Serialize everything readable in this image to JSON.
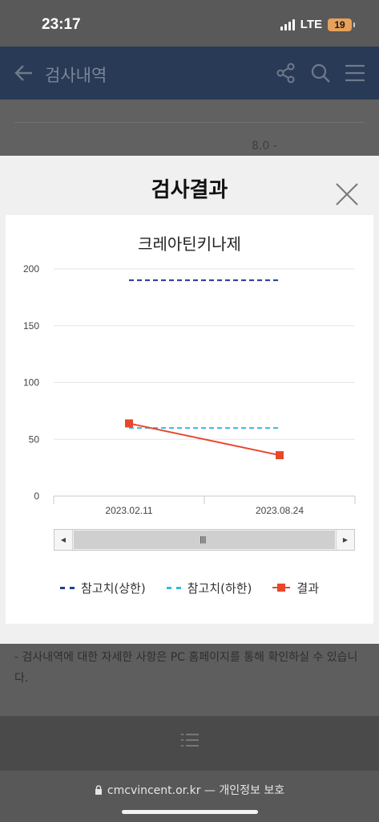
{
  "status_bar": {
    "time": "23:17",
    "network": "LTE",
    "battery": "19"
  },
  "header": {
    "title": "검사내역",
    "back_icon": "arrow-left-icon",
    "share_icon": "share-icon",
    "search_icon": "search-icon",
    "menu_icon": "menu-icon"
  },
  "background_row": {
    "value": "8.0 -"
  },
  "modal": {
    "title": "검사결과",
    "close_icon": "close-icon",
    "scroll_grip": "III",
    "legend": [
      {
        "label": "참고치(상한)",
        "color": "#1f3f9a"
      },
      {
        "label": "참고치(하한)",
        "color": "#35b9ea"
      },
      {
        "label": "결과",
        "color": "#e8472a"
      }
    ]
  },
  "chart_data": {
    "type": "line",
    "title": "크레아틴키나제",
    "categories": [
      "2023.02.11",
      "2023.08.24"
    ],
    "ylim": [
      0,
      200
    ],
    "yticks": [
      0,
      50,
      100,
      150,
      200
    ],
    "grid": true,
    "legend_position": "bottom",
    "series": [
      {
        "name": "참고치(상한)",
        "values": [
          190,
          190
        ],
        "style": "dashed",
        "color": "#1f3f9a"
      },
      {
        "name": "참고치(하한)",
        "values": [
          60,
          60
        ],
        "style": "dashed",
        "color": "#35b9ea"
      },
      {
        "name": "결과",
        "values": [
          64,
          36
        ],
        "style": "solid-square-markers",
        "color": "#e8472a"
      }
    ]
  },
  "notice": {
    "text": "- 검사내역에 대한 자세한 사항은 PC 홈페이지를 통해 확인하실 수 있습니다."
  },
  "browser": {
    "url": "cmcvincent.or.kr — 개인정보 보호",
    "lock_icon": "lock-icon"
  }
}
